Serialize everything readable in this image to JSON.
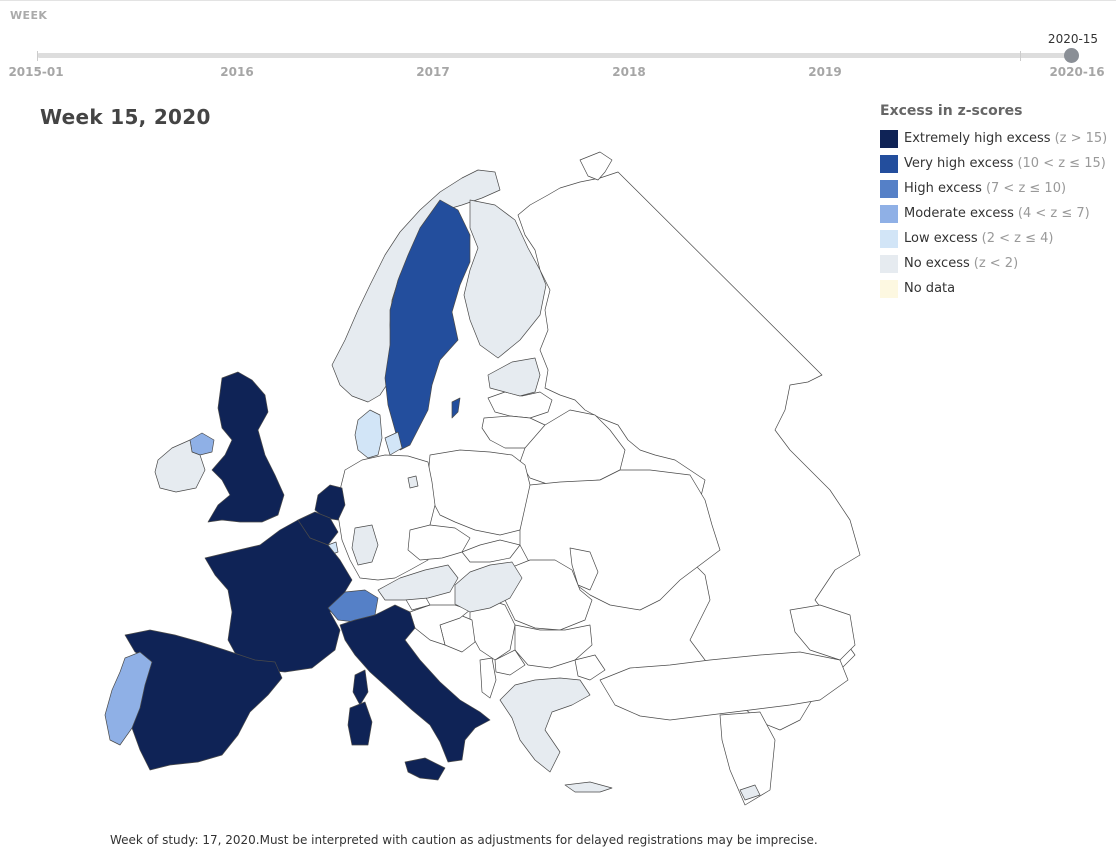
{
  "header": {
    "week_label": "WEEK"
  },
  "timeline": {
    "ticks": [
      "2015-01",
      "2016",
      "2017",
      "2018",
      "2019",
      "2020-16"
    ],
    "current": "2020-15"
  },
  "map": {
    "title": "Week 15, 2020",
    "footnote": "Week of study: 17, 2020.Must be interpreted with caution as adjustments for delayed registrations may be imprecise.",
    "colors": {
      "extremely_high": "#0f2356",
      "very_high": "#234e9d",
      "high": "#5580c7",
      "moderate": "#8fb0e6",
      "low": "#d2e5f7",
      "no_excess": "#e6ebf0",
      "no_data": "#fdf8e1",
      "outside": "#ffffff"
    },
    "countries": [
      {
        "name": "Spain",
        "category": "extremely_high"
      },
      {
        "name": "Portugal",
        "category": "moderate"
      },
      {
        "name": "France",
        "category": "extremely_high"
      },
      {
        "name": "Italy",
        "category": "extremely_high"
      },
      {
        "name": "Belgium",
        "category": "extremely_high"
      },
      {
        "name": "Netherlands",
        "category": "extremely_high"
      },
      {
        "name": "United Kingdom",
        "category": "extremely_high"
      },
      {
        "name": "Northern Ireland",
        "category": "moderate"
      },
      {
        "name": "Ireland",
        "category": "no_excess"
      },
      {
        "name": "Sweden",
        "category": "very_high"
      },
      {
        "name": "Switzerland",
        "category": "high"
      },
      {
        "name": "Denmark",
        "category": "low"
      },
      {
        "name": "Luxembourg",
        "category": "low"
      },
      {
        "name": "Norway",
        "category": "no_excess"
      },
      {
        "name": "Finland",
        "category": "no_excess"
      },
      {
        "name": "Estonia",
        "category": "no_excess"
      },
      {
        "name": "Germany (Hesse)",
        "category": "no_excess"
      },
      {
        "name": "Austria",
        "category": "no_excess"
      },
      {
        "name": "Hungary",
        "category": "no_excess"
      },
      {
        "name": "Greece",
        "category": "no_excess"
      },
      {
        "name": "Cyprus",
        "category": "no_excess"
      },
      {
        "name": "Germany (Berlin)",
        "category": "no_excess"
      }
    ]
  },
  "legend": {
    "title": "Excess in z-scores",
    "items": [
      {
        "key": "extremely_high",
        "label": "Extremely high excess",
        "range": "(z > 15)"
      },
      {
        "key": "very_high",
        "label": "Very high excess",
        "range": "(10 < z ≤ 15)"
      },
      {
        "key": "high",
        "label": "High excess",
        "range": "(7 < z ≤ 10)"
      },
      {
        "key": "moderate",
        "label": "Moderate excess",
        "range": "(4 < z ≤ 7)"
      },
      {
        "key": "low",
        "label": "Low excess",
        "range": "(2 < z ≤ 4)"
      },
      {
        "key": "no_excess",
        "label": "No excess",
        "range": "(z < 2)"
      },
      {
        "key": "no_data",
        "label": "No data",
        "range": ""
      }
    ]
  }
}
